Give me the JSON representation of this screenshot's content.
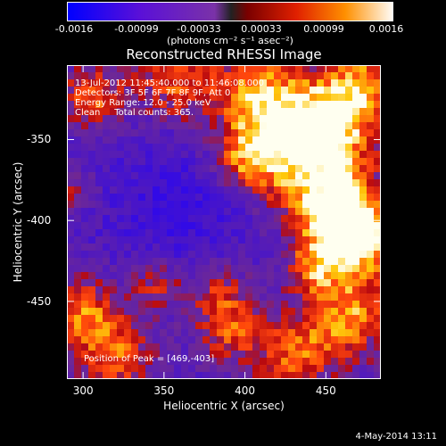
{
  "chart_data": {
    "type": "heatmap",
    "title": "Reconstructed RHESSI Image",
    "xlabel": "Heliocentric X (arcsec)",
    "ylabel": "Heliocentric Y (arcsec)",
    "xlim": [
      290,
      484
    ],
    "ylim": [
      -498,
      -304
    ],
    "x_ticks": [
      "300",
      "350",
      "400",
      "450"
    ],
    "y_ticks": [
      "-350",
      "-400",
      "-450"
    ],
    "colorbar": {
      "ticks": [
        "-0.0016",
        "-0.00099",
        "-0.00033",
        "0.00033",
        "0.00099",
        "0.0016"
      ],
      "units": "(photons cm⁻² s⁻¹ asec⁻²)",
      "range": [
        -0.0016,
        0.0016
      ]
    },
    "peak_position": [
      469,
      -403
    ]
  },
  "annotations": {
    "time_range": "13-Jul-2012 11:45:40.000 to 11:46:08.000",
    "detectors": "Detectors: 3F 5F 6F 7F 8F 9F, Att 0",
    "energy": "Energy Range: 12.0 - 25.0 keV",
    "clean": "Clean     Total counts: 365.",
    "peak": "Position of Peak = [469,-403]"
  },
  "timestamp": "4-May-2014 13:11"
}
